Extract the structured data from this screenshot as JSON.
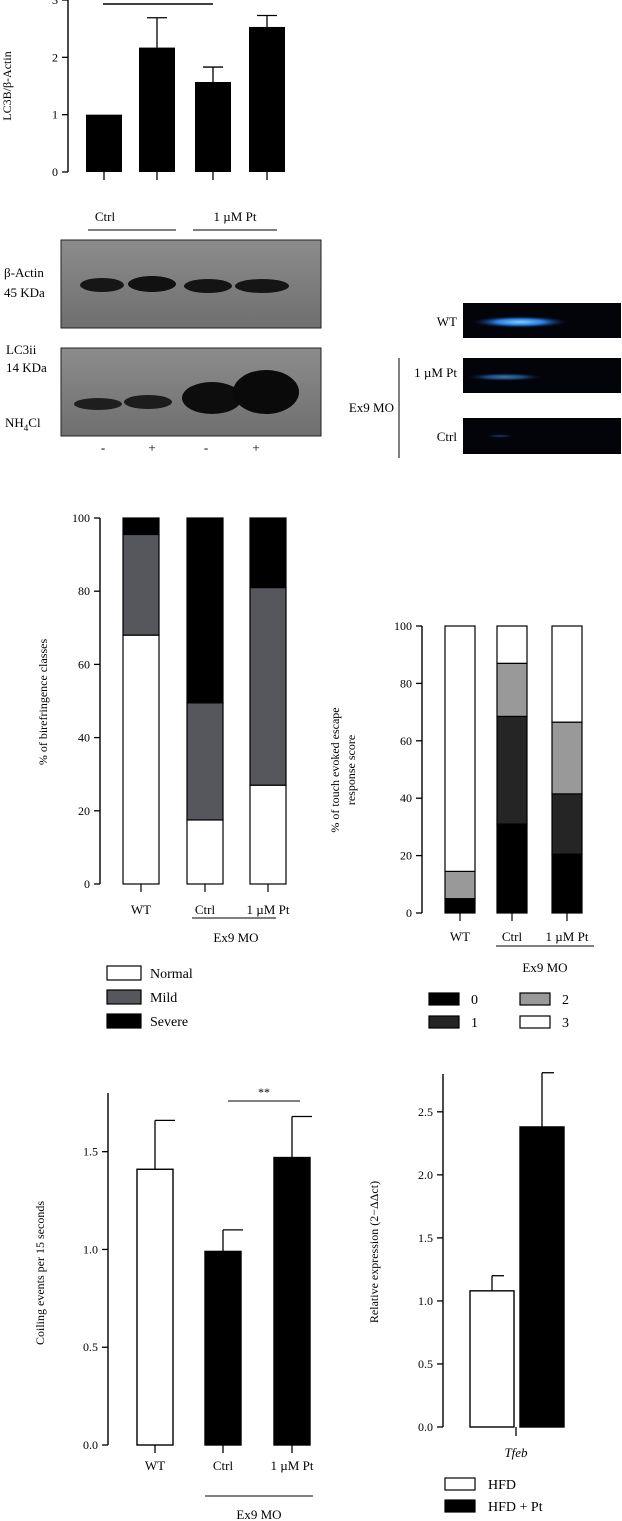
{
  "chart_data": [
    {
      "id": "lc3b",
      "type": "bar",
      "ylabel": "LC3B/β-Actin",
      "yticks": [
        0,
        1,
        2,
        3
      ],
      "ylim": [
        0,
        3
      ],
      "categories": [
        "-",
        "+",
        "-",
        "+"
      ],
      "values": [
        1.0,
        2.17,
        1.57,
        2.53
      ],
      "errors": [
        0,
        0.52,
        0.26,
        0.2
      ],
      "group_labels": [
        "Ctrl",
        "1 µM Pt"
      ],
      "colors": [
        "#000000",
        "#000000",
        "#000000",
        "#000000"
      ]
    },
    {
      "id": "birefringence",
      "type": "bar",
      "stacked": true,
      "ylabel": "% of birefringence classes",
      "yticks": [
        0,
        20,
        40,
        60,
        80,
        100
      ],
      "ylim": [
        0,
        100
      ],
      "categories": [
        "WT",
        "Ctrl",
        "1 µM Pt"
      ],
      "group_label": "Ex9 MO",
      "series": [
        {
          "name": "Normal",
          "values": [
            68,
            17.5,
            27
          ],
          "color": "#ffffff"
        },
        {
          "name": "Mild",
          "values": [
            27.5,
            32,
            54
          ],
          "color": "#55575c"
        },
        {
          "name": "Severe",
          "values": [
            4.5,
            50.5,
            19
          ],
          "color": "#000000"
        }
      ],
      "legend_position": "bottom-left"
    },
    {
      "id": "touch-evoked",
      "type": "bar",
      "stacked": true,
      "ylabel_lines": [
        "% of touch evoked escape",
        "response score"
      ],
      "yticks": [
        0,
        20,
        40,
        60,
        80,
        100
      ],
      "ylim": [
        0,
        100
      ],
      "categories": [
        "WT",
        "Ctrl",
        "1 µM Pt"
      ],
      "group_label": "Ex9 MO",
      "series": [
        {
          "name": "0",
          "values": [
            5,
            31,
            20.5
          ],
          "color": "#000000"
        },
        {
          "name": "1",
          "values": [
            0,
            37.5,
            21
          ],
          "color": "#252525"
        },
        {
          "name": "2",
          "values": [
            9.5,
            18.5,
            25
          ],
          "color": "#999999"
        },
        {
          "name": "3",
          "values": [
            85.5,
            13,
            33.5
          ],
          "color": "#ffffff"
        }
      ],
      "legend_position": "bottom"
    },
    {
      "id": "coiling",
      "type": "bar",
      "ylabel": "Coiling events per 15 seconds",
      "yticks": [
        0.0,
        0.5,
        1.0,
        1.5
      ],
      "ylim": [
        0,
        1.8
      ],
      "categories": [
        "WT",
        "Ctrl",
        "1 µM Pt"
      ],
      "values": [
        1.41,
        0.99,
        1.47
      ],
      "errors": [
        0.25,
        0.11,
        0.21
      ],
      "colors": [
        "#ffffff",
        "#000000",
        "#000000"
      ],
      "group_label": "Ex9 MO",
      "significance": "**"
    },
    {
      "id": "tfeb",
      "type": "bar",
      "ylabel": "Relative expression (2−ΔΔct)",
      "yticks": [
        0.0,
        0.5,
        1.0,
        1.5,
        2.0,
        2.5
      ],
      "ylim": [
        0,
        2.8
      ],
      "xlabel": "Tfeb",
      "series": [
        {
          "name": "HFD",
          "values": [
            1.08
          ],
          "error": 0.12,
          "color": "#ffffff"
        },
        {
          "name": "HFD + Pt",
          "values": [
            2.38
          ],
          "error": 0.43,
          "color": "#000000"
        }
      ],
      "legend_position": "bottom"
    }
  ],
  "blot": {
    "group_labels": [
      "Ctrl",
      "1 µM Pt"
    ],
    "band1_label_lines": [
      "β-Actin",
      "45 KDa"
    ],
    "band2_label_lines": [
      "LC3ii",
      "14 KDa"
    ],
    "treatment_label": "NH",
    "treatment_sub": "4",
    "treatment_suffix": "Cl",
    "lanes": [
      "-",
      "+",
      "-",
      "+"
    ]
  },
  "imaging": {
    "labels": [
      "WT",
      "1 µM Pt",
      "Ctrl"
    ],
    "group_label": "Ex9 MO"
  }
}
